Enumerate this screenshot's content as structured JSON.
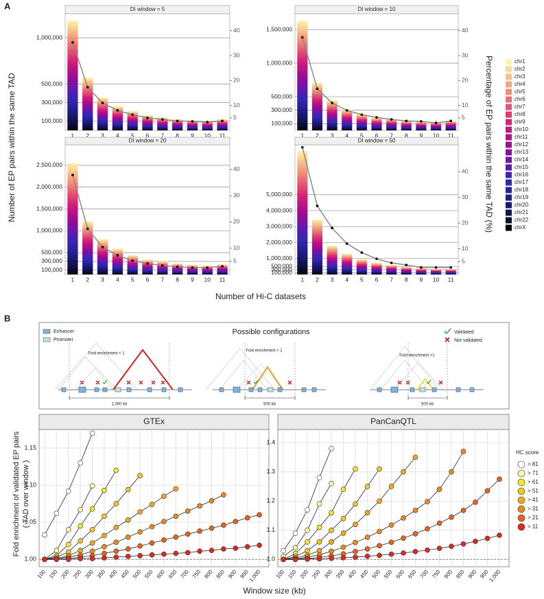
{
  "figure": {
    "panel_a": {
      "label": "A",
      "y_label": "Number of EP pairs within the same TAD",
      "x_label": "Number of Hi-C datasets",
      "y2_label": "Percentage of EP pairs within the same TAD (%)",
      "legend": [
        {
          "name": "chr1",
          "color": "#fbf3b0"
        },
        {
          "name": "chr2",
          "color": "#f9dc97"
        },
        {
          "name": "chr3",
          "color": "#f7c28a"
        },
        {
          "name": "chr4",
          "color": "#f5a67d"
        },
        {
          "name": "chr5",
          "color": "#f08c78"
        },
        {
          "name": "chr6",
          "color": "#ec6f75"
        },
        {
          "name": "chr7",
          "color": "#e55473"
        },
        {
          "name": "chr8",
          "color": "#de3a74"
        },
        {
          "name": "chr9",
          "color": "#d52379"
        },
        {
          "name": "chr10",
          "color": "#c8157f"
        },
        {
          "name": "chr11",
          "color": "#b50f89"
        },
        {
          "name": "chr12",
          "color": "#a10c93"
        },
        {
          "name": "chr13",
          "color": "#8b0c9e"
        },
        {
          "name": "chr14",
          "color": "#7414a8"
        },
        {
          "name": "chr15",
          "color": "#5a1ab0"
        },
        {
          "name": "chr16",
          "color": "#4322b6"
        },
        {
          "name": "chr17",
          "color": "#3326b0"
        },
        {
          "name": "chr18",
          "color": "#2822a0"
        },
        {
          "name": "chr19",
          "color": "#201c88"
        },
        {
          "name": "chr20",
          "color": "#181870"
        },
        {
          "name": "chr21",
          "color": "#121256"
        },
        {
          "name": "chr22",
          "color": "#0c0c30"
        },
        {
          "name": "chrX",
          "color": "#050510"
        }
      ]
    },
    "panel_b": {
      "label": "B",
      "y_label": [
        "Fold enrichment of validated EP pairs",
        "( TAD over window )"
      ],
      "x_label": "Window size (kb)",
      "legend_title": "HC score"
    },
    "diagram": {
      "title": "Possible configurations",
      "enhancer": "Enhancer",
      "promoter": "Promoter",
      "validated": "Validated",
      "not_validated": "Not validated",
      "configs": [
        {
          "label": "Fold enrichment < 1",
          "scale": "1,000 kb"
        },
        {
          "label": "Fold enrichment = 1",
          "scale": "500 kb"
        },
        {
          "label": "Fold enrichment >1",
          "scale": "500 kb"
        }
      ]
    }
  },
  "chart_data": [
    {
      "type": "bar",
      "title": "DI window = 5",
      "categories": [
        "1",
        "2",
        "3",
        "4",
        "5",
        "6",
        "7",
        "8",
        "9",
        "10",
        "11"
      ],
      "values": [
        1185000,
        570000,
        355000,
        260000,
        207000,
        163000,
        140000,
        120000,
        110000,
        100000,
        120000
      ],
      "line": {
        "axis": "y2",
        "color": "#888888",
        "values": [
          35.3,
          17.3,
          11,
          8,
          6.3,
          5,
          4.4,
          3.8,
          3.6,
          3.3,
          3.8
        ]
      },
      "ylim": [
        0,
        1260000
      ],
      "yticks": [
        {
          "value": 100000,
          "label": "100,000"
        },
        {
          "value": 300000,
          "label": "300,000"
        },
        {
          "value": 500000,
          "label": "500,000"
        },
        {
          "value": 1000000,
          "label": "1,000,000"
        }
      ],
      "y2lim": [
        0,
        46.8
      ],
      "y2ticks": [
        5,
        10,
        20,
        30,
        40
      ],
      "grid": true
    },
    {
      "type": "bar",
      "title": "DI window = 10",
      "categories": [
        "1",
        "2",
        "3",
        "4",
        "5",
        "6",
        "7",
        "8",
        "9",
        "10",
        "11"
      ],
      "values": [
        1630000,
        710000,
        450000,
        310000,
        240000,
        190000,
        170000,
        140000,
        130000,
        120000,
        140000
      ],
      "line": {
        "axis": "y2",
        "color": "#888888",
        "values": [
          37.3,
          16.7,
          11,
          8,
          6.3,
          5.2,
          4.4,
          3.8,
          3.6,
          3,
          3.8
        ]
      },
      "ylim": [
        0,
        1735000
      ],
      "yticks": [
        {
          "value": 100000,
          "label": "100,000"
        },
        {
          "value": 300000,
          "label": "300,000"
        },
        {
          "value": 500000,
          "label": "500,000"
        },
        {
          "value": 1000000,
          "label": "1,000,000"
        },
        {
          "value": 1500000,
          "label": "1,500,000"
        }
      ],
      "y2lim": [
        0,
        46.8
      ],
      "y2ticks": [
        5,
        10,
        20,
        30,
        40
      ],
      "grid": true
    },
    {
      "type": "bar",
      "title": "DI window = 20",
      "categories": [
        "1",
        "2",
        "3",
        "4",
        "5",
        "6",
        "7",
        "8",
        "9",
        "10",
        "11"
      ],
      "values": [
        2550000,
        1220000,
        810000,
        590000,
        440000,
        340000,
        300000,
        250000,
        220000,
        200000,
        230000
      ],
      "line": {
        "axis": "y2",
        "color": "#888888",
        "values": [
          37.9,
          17.4,
          10.4,
          7.3,
          5.2,
          4.2,
          3.4,
          2.9,
          2.6,
          2.6,
          3.1
        ]
      },
      "ylim": [
        0,
        2970000
      ],
      "yticks": [
        {
          "value": 100000,
          "label": "100,000"
        },
        {
          "value": 300000,
          "label": "300,000"
        },
        {
          "value": 500000,
          "label": "500,000"
        },
        {
          "value": 1000000,
          "label": "1,000,000"
        },
        {
          "value": 1500000,
          "label": "1,500,000"
        },
        {
          "value": 2000000,
          "label": "2,000,000"
        },
        {
          "value": 2500000,
          "label": "2,500,000"
        }
      ],
      "y2lim": [
        0,
        49.4
      ],
      "y2ticks": [
        5,
        10,
        20,
        30,
        40
      ],
      "grid": true
    },
    {
      "type": "bar",
      "title": "DI window = 50",
      "categories": [
        "1",
        "2",
        "3",
        "4",
        "5",
        "6",
        "7",
        "8",
        "9",
        "10",
        "11"
      ],
      "values": [
        7750000,
        3450000,
        1800000,
        1300000,
        950000,
        730000,
        600000,
        470000,
        390000,
        340000,
        340000
      ],
      "line": {
        "axis": "y2",
        "color": "#888888",
        "values": [
          49.5,
          26.7,
          18.1,
          12,
          8.5,
          6.1,
          4.5,
          3.7,
          2.7,
          2.7,
          2.7
        ]
      },
      "ylim": [
        0,
        8130000
      ],
      "yticks": [
        {
          "value": 100000,
          "label": "100,000"
        },
        {
          "value": 300000,
          "label": "300,000"
        },
        {
          "value": 500000,
          "label": "500,000"
        },
        {
          "value": 1000000,
          "label": "1,000,000"
        },
        {
          "value": 2000000,
          "label": "2,000,000"
        },
        {
          "value": 3000000,
          "label": "3,000,000"
        },
        {
          "value": 4000000,
          "label": "4,000,000"
        },
        {
          "value": 5000000,
          "label": "5,000,000"
        }
      ],
      "y2lim": [
        0,
        50.5
      ],
      "y2ticks": [
        5,
        10,
        20,
        30,
        40
      ],
      "grid": true
    },
    {
      "type": "line",
      "title": "GTEx",
      "x": [
        100,
        150,
        200,
        250,
        300,
        350,
        400,
        450,
        500,
        550,
        600,
        650,
        700,
        750,
        800,
        850,
        900,
        950,
        1000
      ],
      "series": [
        {
          "name": "> 81",
          "color": "#ffffff",
          "values": [
            1.033,
            1.062,
            1.092,
            1.13,
            1.17,
            null,
            null,
            null,
            null,
            null,
            null,
            null,
            null,
            null,
            null,
            null,
            null,
            null,
            null
          ]
        },
        {
          "name": "> 71",
          "color": "#fbf5a8",
          "values": [
            1.0,
            1.012,
            1.04,
            1.067,
            1.099,
            null,
            null,
            null,
            null,
            null,
            null,
            null,
            null,
            null,
            null,
            null,
            null,
            null,
            null
          ]
        },
        {
          "name": "> 61",
          "color": "#f7e62a",
          "values": [
            1.0,
            1.005,
            1.02,
            1.045,
            1.068,
            1.093,
            1.12,
            null,
            null,
            null,
            null,
            null,
            null,
            null,
            null,
            null,
            null,
            null,
            null
          ]
        },
        {
          "name": "> 51",
          "color": "#f3c823",
          "values": [
            1.0,
            1.003,
            1.01,
            1.025,
            1.04,
            1.058,
            1.075,
            1.094,
            1.113,
            null,
            null,
            null,
            null,
            null,
            null,
            null,
            null,
            null,
            null
          ]
        },
        {
          "name": "> 41",
          "color": "#efa91e",
          "values": [
            1.0,
            1.001,
            1.005,
            1.012,
            1.022,
            1.032,
            1.043,
            1.053,
            1.064,
            1.074,
            1.085,
            1.095,
            null,
            null,
            null,
            null,
            null,
            null,
            null
          ]
        },
        {
          "name": "> 31",
          "color": "#eb8a1c",
          "values": [
            1.0,
            1.001,
            1.003,
            1.006,
            1.011,
            1.017,
            1.023,
            1.03,
            1.037,
            1.044,
            1.051,
            1.058,
            1.065,
            1.072,
            1.079,
            1.087,
            null,
            null,
            null
          ]
        },
        {
          "name": "> 21",
          "color": "#e5631c",
          "values": [
            1.0,
            1.0,
            1.001,
            1.003,
            1.005,
            1.008,
            1.011,
            1.014,
            1.018,
            1.022,
            1.026,
            1.03,
            1.034,
            1.038,
            1.042,
            1.046,
            1.051,
            1.056,
            1.06
          ]
        },
        {
          "name": "> 11",
          "color": "#de2a1c",
          "values": [
            1.0,
            1.0,
            1.0,
            1.001,
            1.001,
            1.002,
            1.003,
            1.004,
            1.005,
            1.006,
            1.007,
            1.008,
            1.009,
            1.011,
            1.012,
            1.014,
            1.015,
            1.017,
            1.019
          ]
        }
      ],
      "xlim": [
        77,
        1040
      ],
      "xticks": [
        100,
        150,
        200,
        250,
        300,
        350,
        400,
        450,
        500,
        550,
        600,
        650,
        700,
        750,
        800,
        850,
        900,
        950,
        {
          "value": 1000,
          "label": "1,000"
        }
      ],
      "ylim": [
        0.99,
        1.175
      ],
      "yticks": [
        {
          "value": 1,
          "label": "1.00"
        },
        1.05,
        {
          "value": 1.1,
          "label": "1.10"
        },
        1.15
      ],
      "reference_line": 1,
      "grid": true
    },
    {
      "type": "line",
      "title": "PanCanQTL",
      "x": [
        100,
        150,
        200,
        250,
        300,
        350,
        400,
        450,
        500,
        550,
        600,
        650,
        700,
        750,
        800,
        850,
        900,
        950,
        1000
      ],
      "series": [
        {
          "name": "> 81",
          "color": "#ffffff",
          "values": [
            1.03,
            1.09,
            1.17,
            1.28,
            1.38,
            null,
            null,
            null,
            null,
            null,
            null,
            null,
            null,
            null,
            null,
            null,
            null,
            null,
            null
          ]
        },
        {
          "name": "> 71",
          "color": "#fbf5a8",
          "values": [
            1.01,
            1.04,
            1.1,
            1.19,
            1.26,
            null,
            null,
            null,
            null,
            null,
            null,
            null,
            null,
            null,
            null,
            null,
            null,
            null,
            null
          ]
        },
        {
          "name": "> 61",
          "color": "#f7e62a",
          "values": [
            1.0,
            1.02,
            1.06,
            1.11,
            1.16,
            1.24,
            1.31,
            null,
            null,
            null,
            null,
            null,
            null,
            null,
            null,
            null,
            null,
            null,
            null
          ]
        },
        {
          "name": "> 51",
          "color": "#f3c823",
          "values": [
            1.0,
            1.01,
            1.03,
            1.06,
            1.1,
            1.14,
            1.19,
            1.25,
            1.31,
            null,
            null,
            null,
            null,
            null,
            null,
            null,
            null,
            null,
            null
          ]
        },
        {
          "name": "> 41",
          "color": "#efa91e",
          "values": [
            1.0,
            1.005,
            1.015,
            1.03,
            1.06,
            1.09,
            1.12,
            1.16,
            1.2,
            1.25,
            1.3,
            1.35,
            null,
            null,
            null,
            null,
            null,
            null,
            null
          ]
        },
        {
          "name": "> 31",
          "color": "#eb8a1c",
          "values": [
            1.0,
            1.002,
            1.008,
            1.016,
            1.028,
            1.042,
            1.058,
            1.076,
            1.096,
            1.118,
            1.142,
            1.168,
            1.198,
            1.24,
            1.3,
            1.37,
            null,
            null,
            null
          ]
        },
        {
          "name": "> 21",
          "color": "#e5631c",
          "values": [
            1.0,
            1.001,
            1.003,
            1.007,
            1.012,
            1.019,
            1.027,
            1.036,
            1.047,
            1.059,
            1.073,
            1.088,
            1.105,
            1.124,
            1.145,
            1.168,
            1.196,
            1.235,
            1.275
          ]
        },
        {
          "name": "> 11",
          "color": "#de2a1c",
          "values": [
            1.0,
            1.0,
            1.001,
            1.002,
            1.004,
            1.006,
            1.008,
            1.011,
            1.014,
            1.018,
            1.022,
            1.027,
            1.032,
            1.038,
            1.045,
            1.053,
            1.062,
            1.072,
            1.083
          ]
        }
      ],
      "xlim": [
        77,
        1040
      ],
      "xticks": [
        100,
        150,
        200,
        250,
        300,
        350,
        400,
        450,
        500,
        550,
        600,
        650,
        700,
        750,
        800,
        850,
        900,
        950,
        {
          "value": 1000,
          "label": "1,000"
        }
      ],
      "ylim": [
        0.975,
        1.445
      ],
      "yticks": [
        {
          "value": 1,
          "label": "1.0"
        },
        1.1,
        1.2,
        1.3,
        1.4
      ],
      "reference_line": 1,
      "grid": true
    }
  ]
}
